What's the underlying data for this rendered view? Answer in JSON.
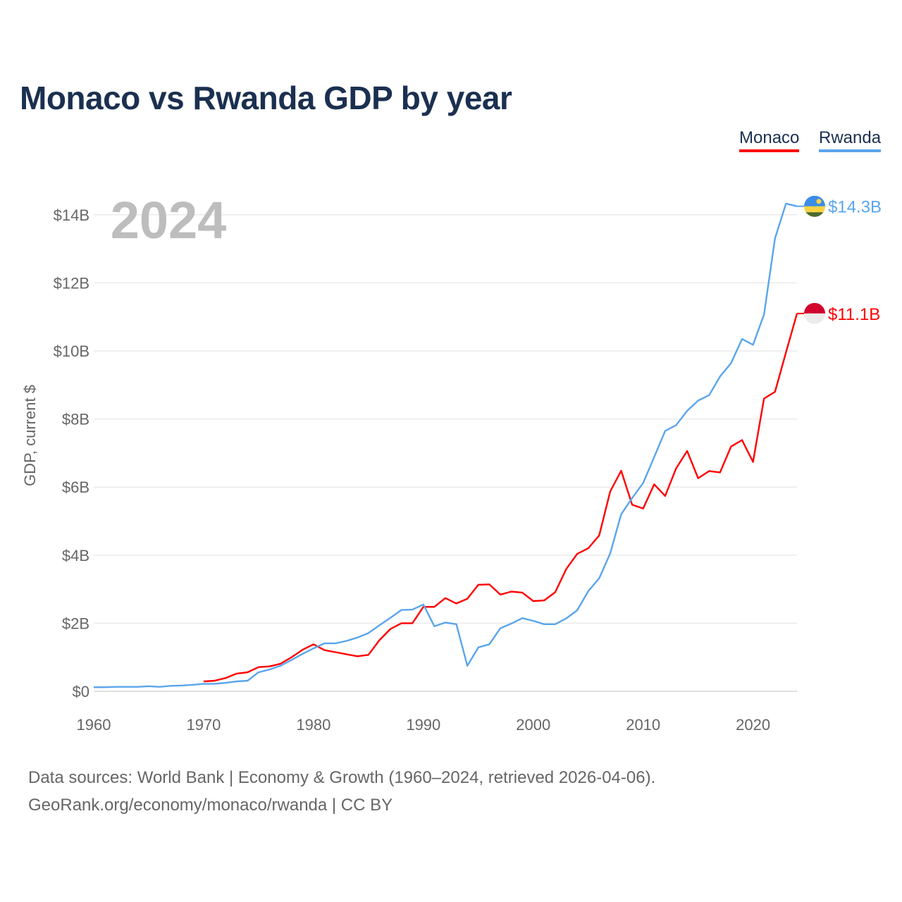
{
  "title": "Monaco vs Rwanda GDP by year",
  "legend": {
    "monaco": "Monaco",
    "rwanda": "Rwanda"
  },
  "year_label": "2024",
  "source": {
    "line1": "Data sources: World Bank | Economy & Growth (1960–2024, retrieved 2026-04-06).",
    "line2": "GeoRank.org/economy/monaco/rwanda | CC BY"
  },
  "chart_data": {
    "type": "line",
    "title": "Monaco vs Rwanda GDP by year",
    "xlabel": "",
    "ylabel": "GDP, current $",
    "xlim": [
      1960,
      2024
    ],
    "ylim": [
      0,
      14.5
    ],
    "x_ticks": [
      1960,
      1970,
      1980,
      1990,
      2000,
      2010,
      2020
    ],
    "y_ticks": [
      0,
      2,
      4,
      6,
      8,
      10,
      12,
      14
    ],
    "y_tick_labels": [
      "$0",
      "$2B",
      "$4B",
      "$6B",
      "$8B",
      "$10B",
      "$12B",
      "$14B"
    ],
    "grid": true,
    "legend_position": "top-right",
    "units": "billions USD",
    "series": [
      {
        "name": "Monaco",
        "color": "#ff0000",
        "end_label": "$11.1B",
        "start_year": 1970,
        "values": [
          0.29,
          0.31,
          0.39,
          0.52,
          0.56,
          0.71,
          0.73,
          0.81,
          1.0,
          1.22,
          1.38,
          1.21,
          1.15,
          1.09,
          1.03,
          1.07,
          1.5,
          1.83,
          2.0,
          2.0,
          2.48,
          2.48,
          2.74,
          2.58,
          2.72,
          3.13,
          3.14,
          2.84,
          2.93,
          2.9,
          2.65,
          2.67,
          2.91,
          3.59,
          4.04,
          4.2,
          4.58,
          5.87,
          6.48,
          5.48,
          5.37,
          6.08,
          5.74,
          6.55,
          7.06,
          6.26,
          6.47,
          6.43,
          7.19,
          7.38,
          6.74,
          8.6,
          8.8,
          9.96,
          11.1
        ]
      },
      {
        "name": "Rwanda",
        "color": "#5aa5ec",
        "end_label": "$14.3B",
        "start_year": 1960,
        "values": [
          0.12,
          0.12,
          0.13,
          0.13,
          0.13,
          0.15,
          0.13,
          0.16,
          0.17,
          0.19,
          0.22,
          0.22,
          0.25,
          0.29,
          0.31,
          0.56,
          0.64,
          0.75,
          0.92,
          1.1,
          1.26,
          1.41,
          1.41,
          1.48,
          1.58,
          1.71,
          1.94,
          2.16,
          2.39,
          2.4,
          2.55,
          1.91,
          2.02,
          1.97,
          0.75,
          1.29,
          1.38,
          1.85,
          1.99,
          2.15,
          2.07,
          1.97,
          1.97,
          2.14,
          2.38,
          2.94,
          3.32,
          4.05,
          5.2,
          5.68,
          6.12,
          6.88,
          7.65,
          7.82,
          8.24,
          8.54,
          8.7,
          9.25,
          9.64,
          10.35,
          10.18,
          11.07,
          13.31,
          14.33,
          14.25
        ]
      }
    ]
  }
}
